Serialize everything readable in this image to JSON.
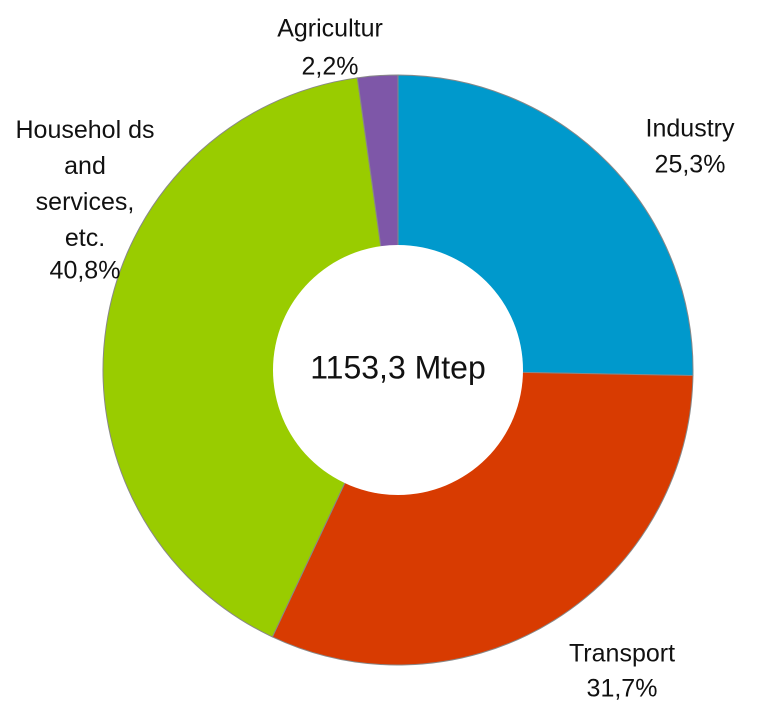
{
  "chart_data": {
    "type": "donut",
    "categories": [
      "Industry",
      "Transport",
      "Househol ds and services, etc.",
      "Agricultur"
    ],
    "values": [
      25.3,
      31.7,
      40.8,
      2.2
    ],
    "value_labels": [
      "25,3%",
      "31,7%",
      "40,8%",
      "2,2%"
    ],
    "colors": [
      "#0099cc",
      "#d83b01",
      "#99cc00",
      "#7e57a8"
    ],
    "center_label": "1153,3 Mtep"
  }
}
